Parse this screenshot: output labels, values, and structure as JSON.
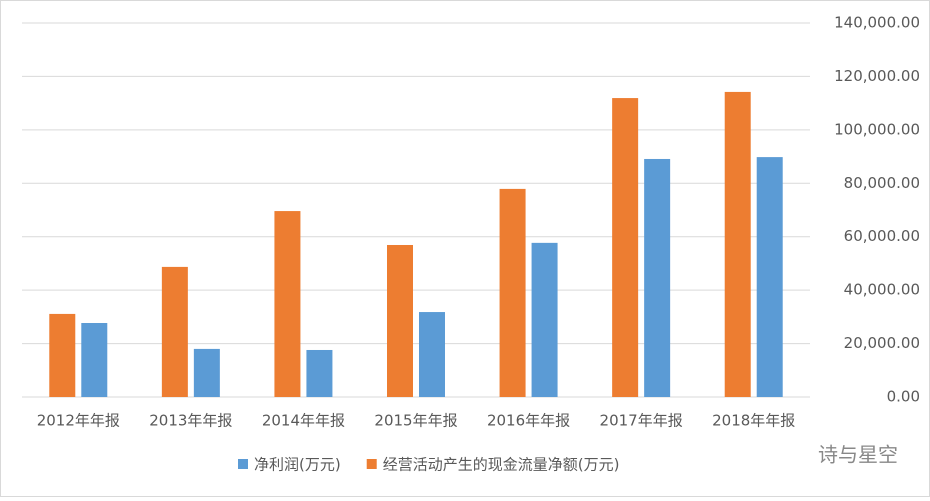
{
  "chart_data": {
    "type": "bar",
    "categories": [
      "2012年年报",
      "2013年年报",
      "2014年年报",
      "2015年年报",
      "2016年年报",
      "2017年年报",
      "2018年年报"
    ],
    "series": [
      {
        "name": "净利润(万元)",
        "color": "#5b9bd5",
        "values": [
          27700,
          18000,
          17600,
          31800,
          57700,
          89100,
          89800
        ]
      },
      {
        "name": "经营活动产生的现金流量净额(万元)",
        "color": "#ed7d31",
        "values": [
          31100,
          48700,
          69600,
          56900,
          77900,
          111900,
          114200
        ]
      }
    ],
    "ylim": [
      0,
      140000
    ],
    "yticks": [
      {
        "value": 0,
        "label": "0.00"
      },
      {
        "value": 20000,
        "label": "20,000.00"
      },
      {
        "value": 40000,
        "label": "40,000.00"
      },
      {
        "value": 60000,
        "label": "60,000.00"
      },
      {
        "value": 80000,
        "label": "80,000.00"
      },
      {
        "value": 100000,
        "label": "100,000.00"
      },
      {
        "value": 120000,
        "label": "120,000.00"
      },
      {
        "value": 140000,
        "label": "140,000.00"
      }
    ],
    "grid": true,
    "watermark": "诗与星空"
  }
}
